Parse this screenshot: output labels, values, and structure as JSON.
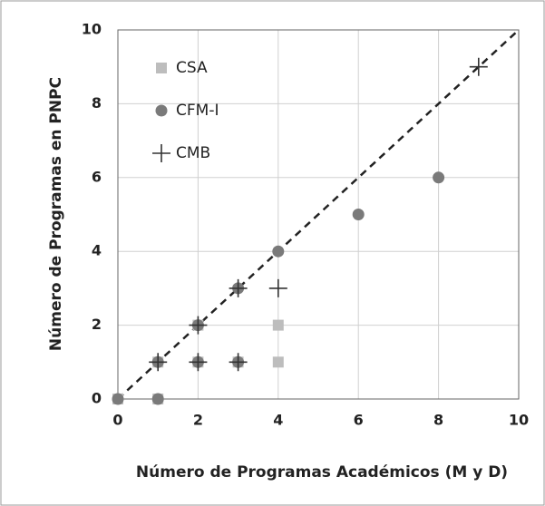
{
  "chart_data": {
    "type": "scatter",
    "x_label": "Número de Programas Académicos (M y D)",
    "y_label": "Número de Programas en PNPC",
    "xlim": [
      0,
      10
    ],
    "ylim": [
      0,
      10
    ],
    "xticks": [
      0,
      2,
      4,
      6,
      8,
      10
    ],
    "yticks": [
      0,
      2,
      4,
      6,
      8,
      10
    ],
    "grid": true,
    "identity_line": true,
    "legend": "upper left",
    "series": [
      {
        "name": "CSA",
        "color": "#bdbdbd",
        "marker": "square",
        "x": [
          0,
          1,
          1,
          2,
          2,
          3,
          4,
          4
        ],
        "y": [
          0,
          0,
          1,
          1,
          2,
          1,
          1,
          2
        ]
      },
      {
        "name": "CFM-I",
        "color": "#7a7a7a",
        "marker": "circle",
        "x": [
          0,
          1,
          1,
          2,
          2,
          3,
          3,
          4,
          6,
          8
        ],
        "y": [
          0,
          0,
          1,
          1,
          2,
          1,
          3,
          4,
          5,
          6
        ]
      },
      {
        "name": "CMB",
        "color": "#333333",
        "marker": "plus",
        "x": [
          1,
          2,
          2,
          3,
          3,
          4,
          9
        ],
        "y": [
          1,
          1,
          2,
          1,
          3,
          3,
          9
        ]
      }
    ]
  }
}
